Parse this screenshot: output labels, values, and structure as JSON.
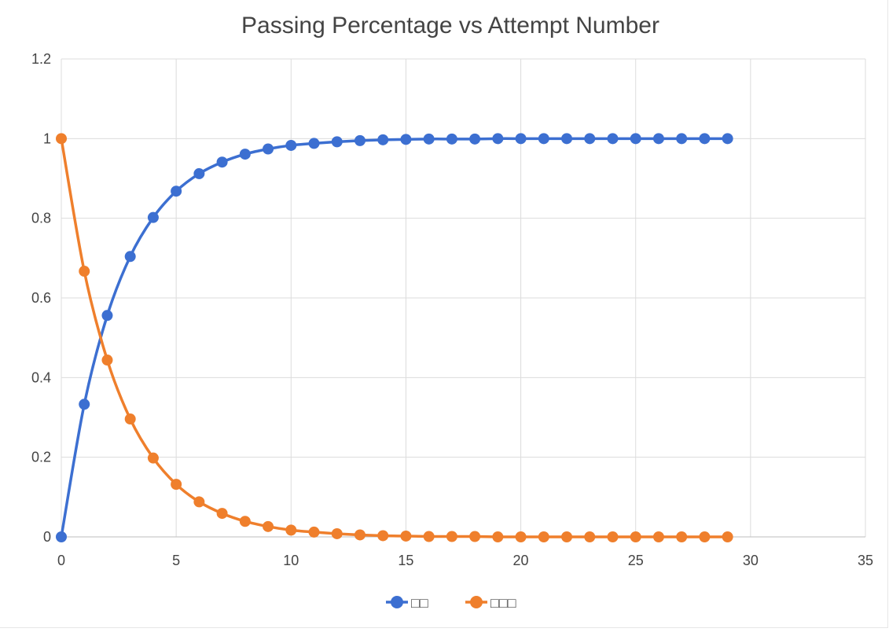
{
  "chart_data": {
    "type": "scatter",
    "title": "Passing Percentage vs Attempt Number",
    "xlabel": "",
    "ylabel": "",
    "xlim": [
      0,
      35
    ],
    "ylim": [
      0,
      1.2
    ],
    "x_ticks": [
      "0",
      "5",
      "10",
      "15",
      "20",
      "25",
      "30",
      "35"
    ],
    "y_ticks": [
      "0",
      "0.2",
      "0.4",
      "0.6",
      "0.8",
      "1",
      "1.2"
    ],
    "grid": true,
    "legend_position": "bottom",
    "lines": "smooth",
    "x": [
      0,
      1,
      2,
      3,
      4,
      5,
      6,
      7,
      8,
      9,
      10,
      11,
      12,
      13,
      14,
      15,
      16,
      17,
      18,
      19,
      20,
      21,
      22,
      23,
      24,
      25,
      26,
      27,
      28,
      29
    ],
    "series": [
      {
        "name": "□□",
        "color": "#3c6fd1",
        "values": [
          0,
          0.333,
          0.556,
          0.704,
          0.802,
          0.868,
          0.912,
          0.941,
          0.961,
          0.974,
          0.983,
          0.988,
          0.992,
          0.995,
          0.997,
          0.998,
          0.999,
          0.999,
          0.999,
          1.0,
          1.0,
          1.0,
          1.0,
          1.0,
          1.0,
          1.0,
          1.0,
          1.0,
          1.0,
          1.0
        ]
      },
      {
        "name": "□□□",
        "color": "#ef7f2c",
        "values": [
          1.0,
          0.667,
          0.444,
          0.296,
          0.198,
          0.132,
          0.088,
          0.059,
          0.039,
          0.026,
          0.017,
          0.012,
          0.008,
          0.005,
          0.003,
          0.002,
          0.001,
          0.001,
          0.001,
          0.0,
          0.0,
          0.0,
          0.0,
          0.0,
          0.0,
          0.0,
          0.0,
          0.0,
          0.0,
          0.0
        ]
      }
    ]
  }
}
